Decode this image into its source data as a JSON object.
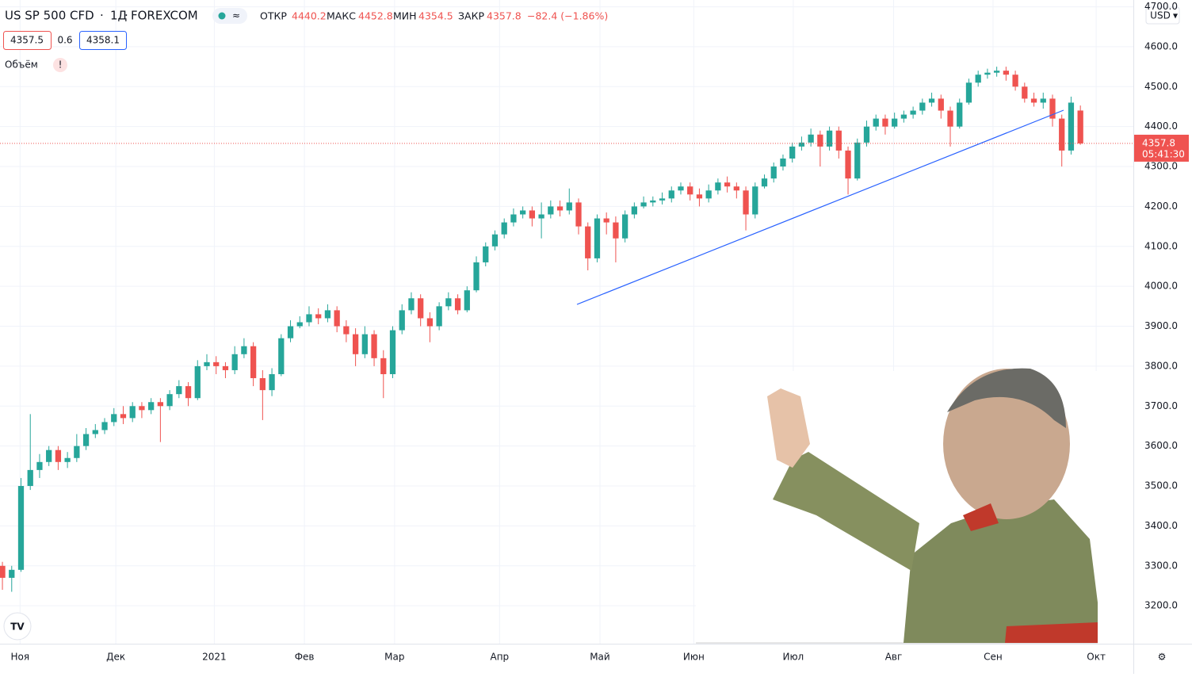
{
  "header": {
    "symbol": "US SP 500 CFD",
    "interval": "1Д",
    "exchange": "FOREXCOM",
    "labels": [
      "ОТКР",
      "МАКС",
      "МИН",
      "ЗАКР"
    ],
    "change": "−82.4 (−1.86%)",
    "bid": 4357.5,
    "spread": 0.6,
    "ask": 4358.1,
    "volume_label": "Объём",
    "volume_warning": "!"
  },
  "chart_data": {
    "type": "candlestick",
    "currency": "USD",
    "countdown": "05:41:30",
    "up_color": "#26a69a",
    "down_color": "#ef5350",
    "grid": true,
    "xlim": [
      -0.26,
      121.7
    ],
    "ylim": [
      3105,
      4717
    ],
    "yticks": [
      {
        "value": 3200,
        "label": "3200.0"
      },
      {
        "value": 3300,
        "label": "3300.0"
      },
      {
        "value": 3400,
        "label": "3400.0"
      },
      {
        "value": 3500,
        "label": "3500.0"
      },
      {
        "value": 3600,
        "label": "3600.0"
      },
      {
        "value": 3700,
        "label": "3700.0"
      },
      {
        "value": 3800,
        "label": "3800.0"
      },
      {
        "value": 3900,
        "label": "3900.0"
      },
      {
        "value": 4000,
        "label": "4000.0"
      },
      {
        "value": 4100,
        "label": "4100.0"
      },
      {
        "value": 4200,
        "label": "4200.0"
      },
      {
        "value": 4300,
        "label": "4300.0"
      },
      {
        "value": 4400,
        "label": "4400.0"
      },
      {
        "value": 4500,
        "label": "4500.0"
      },
      {
        "value": 4600,
        "label": "4600.0"
      },
      {
        "value": 4700,
        "label": "4700.0"
      }
    ],
    "xticks": [
      {
        "value": 1.9,
        "label": "Ноя"
      },
      {
        "value": 12.2,
        "label": "Дек"
      },
      {
        "value": 22.8,
        "label": "2021"
      },
      {
        "value": 32.5,
        "label": "Фев"
      },
      {
        "value": 42.2,
        "label": "Мар"
      },
      {
        "value": 53.5,
        "label": "Апр"
      },
      {
        "value": 64.3,
        "label": "Май"
      },
      {
        "value": 74.4,
        "label": "Июн"
      },
      {
        "value": 85.1,
        "label": "Июл"
      },
      {
        "value": 95.9,
        "label": "Авг"
      },
      {
        "value": 106.6,
        "label": "Сен"
      },
      {
        "value": 117.7,
        "label": "Окт"
      }
    ],
    "open": [
      3300,
      3270,
      3290,
      3500,
      3540,
      3560,
      3590,
      3560,
      3570,
      3600,
      3630,
      3640,
      3660,
      3680,
      3670,
      3700,
      3690,
      3710,
      3700,
      3730,
      3750,
      3720,
      3800,
      3810,
      3800,
      3790,
      3830,
      3850,
      3770,
      3740,
      3780,
      3870,
      3900,
      3910,
      3930,
      3920,
      3940,
      3900,
      3880,
      3830,
      3880,
      3820,
      3780,
      3890,
      3940,
      3970,
      3920,
      3900,
      3950,
      3970,
      3940,
      3990,
      4060,
      4100,
      4130,
      4160,
      4180,
      4190,
      4170,
      4180,
      4200,
      4190,
      4210,
      4150,
      4070,
      4170,
      4160,
      4120,
      4180,
      4200,
      4210,
      4215,
      4220,
      4240,
      4250,
      4230,
      4220,
      4240,
      4260,
      4250,
      4240,
      4180,
      4250,
      4270,
      4300,
      4320,
      4350,
      4360,
      4380,
      4350,
      4390,
      4340,
      4270,
      4360,
      4400,
      4420,
      4400,
      4420,
      4430,
      4440,
      4460,
      4470,
      4440,
      4400,
      4460,
      4510,
      4530,
      4535,
      4540,
      4530,
      4500,
      4470,
      4460,
      4470,
      4420,
      4340,
      4440.2
    ],
    "high": [
      3310,
      3300,
      3520,
      3680,
      3580,
      3600,
      3600,
      3585,
      3630,
      3645,
      3655,
      3670,
      3695,
      3700,
      3710,
      3710,
      3720,
      3720,
      3740,
      3765,
      3760,
      3815,
      3830,
      3825,
      3810,
      3850,
      3870,
      3860,
      3790,
      3795,
      3880,
      3915,
      3925,
      3950,
      3945,
      3955,
      3950,
      3915,
      3895,
      3900,
      3890,
      3840,
      3900,
      3955,
      3985,
      3980,
      3935,
      3960,
      3985,
      3980,
      4000,
      4075,
      4110,
      4140,
      4170,
      4195,
      4200,
      4200,
      4210,
      4215,
      4215,
      4245,
      4220,
      4160,
      4180,
      4185,
      4175,
      4190,
      4210,
      4225,
      4225,
      4235,
      4250,
      4260,
      4260,
      4245,
      4255,
      4270,
      4275,
      4260,
      4250,
      4260,
      4280,
      4310,
      4330,
      4360,
      4375,
      4395,
      4390,
      4400,
      4400,
      4350,
      4370,
      4415,
      4430,
      4430,
      4435,
      4440,
      4450,
      4470,
      4485,
      4480,
      4450,
      4470,
      4520,
      4540,
      4545,
      4550,
      4550,
      4540,
      4510,
      4485,
      4485,
      4480,
      4430,
      4475,
      4452.8
    ],
    "low": [
      3240,
      3235,
      3285,
      3490,
      3520,
      3550,
      3540,
      3545,
      3560,
      3590,
      3620,
      3630,
      3650,
      3655,
      3660,
      3670,
      3680,
      3610,
      3690,
      3720,
      3700,
      3715,
      3790,
      3780,
      3770,
      3780,
      3820,
      3750,
      3665,
      3725,
      3775,
      3860,
      3895,
      3900,
      3905,
      3910,
      3885,
      3860,
      3800,
      3820,
      3800,
      3720,
      3770,
      3880,
      3930,
      3900,
      3860,
      3890,
      3940,
      3930,
      3935,
      3985,
      4050,
      4090,
      4120,
      4150,
      4170,
      4150,
      4120,
      4170,
      4175,
      4180,
      4130,
      4040,
      4060,
      4130,
      4060,
      4110,
      4170,
      4195,
      4200,
      4205,
      4210,
      4230,
      4215,
      4200,
      4210,
      4230,
      4235,
      4220,
      4140,
      4170,
      4245,
      4260,
      4290,
      4310,
      4340,
      4350,
      4300,
      4340,
      4320,
      4230,
      4265,
      4350,
      4390,
      4380,
      4395,
      4410,
      4420,
      4430,
      4450,
      4420,
      4350,
      4395,
      4455,
      4500,
      4520,
      4525,
      4515,
      4490,
      4460,
      4450,
      4445,
      4400,
      4300,
      4330,
      4354.5
    ],
    "close": [
      3270,
      3290,
      3500,
      3540,
      3560,
      3590,
      3560,
      3570,
      3600,
      3630,
      3640,
      3660,
      3680,
      3670,
      3700,
      3690,
      3710,
      3700,
      3730,
      3750,
      3720,
      3800,
      3810,
      3800,
      3790,
      3830,
      3850,
      3770,
      3740,
      3780,
      3870,
      3900,
      3910,
      3930,
      3920,
      3940,
      3900,
      3880,
      3830,
      3880,
      3820,
      3780,
      3890,
      3940,
      3970,
      3920,
      3900,
      3950,
      3970,
      3940,
      3990,
      4060,
      4100,
      4130,
      4160,
      4180,
      4190,
      4170,
      4180,
      4200,
      4190,
      4210,
      4150,
      4070,
      4170,
      4160,
      4120,
      4180,
      4200,
      4210,
      4215,
      4220,
      4240,
      4250,
      4230,
      4220,
      4240,
      4260,
      4250,
      4240,
      4180,
      4250,
      4270,
      4300,
      4320,
      4350,
      4360,
      4380,
      4350,
      4390,
      4340,
      4270,
      4360,
      4400,
      4420,
      4400,
      4420,
      4430,
      4440,
      4460,
      4470,
      4440,
      4400,
      4460,
      4510,
      4530,
      4535,
      4540,
      4530,
      4500,
      4470,
      4460,
      4470,
      4420,
      4340,
      4460,
      4357.8
    ]
  }
}
